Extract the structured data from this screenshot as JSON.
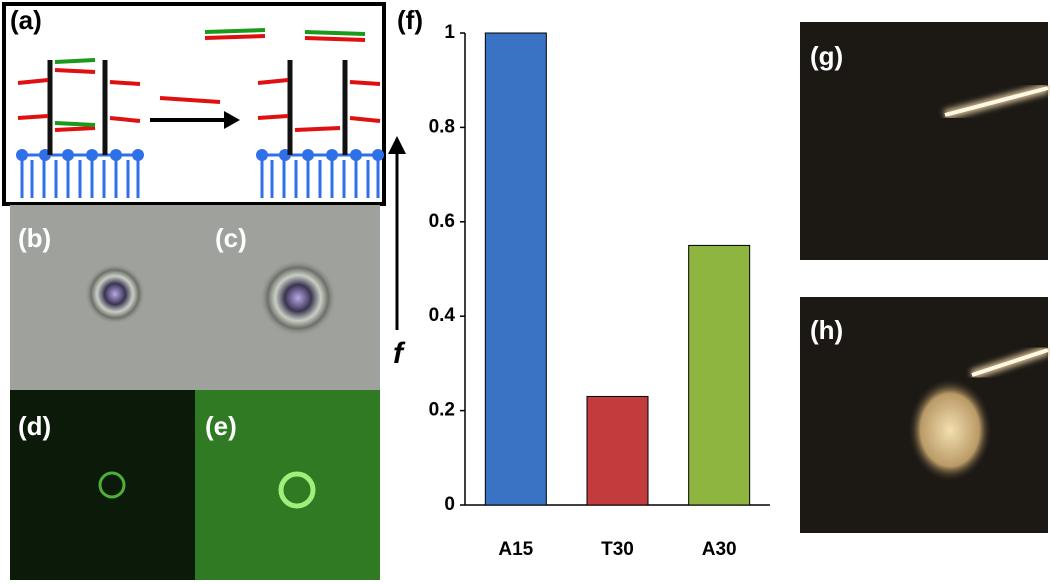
{
  "panels": [
    "(a)",
    "(b)",
    "(c)",
    "(d)",
    "(e)",
    "(g)",
    "(h)"
  ],
  "chart_data": {
    "type": "bar",
    "title": "(f)",
    "y_label": "f",
    "categories": [
      "A15",
      "T30",
      "A30"
    ],
    "values": [
      1,
      0.23,
      0.55
    ],
    "colors": [
      "#3b73c4",
      "#c23c3e",
      "#8db53f"
    ],
    "ylim": [
      0,
      1
    ],
    "yticks": [
      0,
      0.2,
      0.4,
      0.6,
      0.8,
      1
    ],
    "grid": false
  }
}
